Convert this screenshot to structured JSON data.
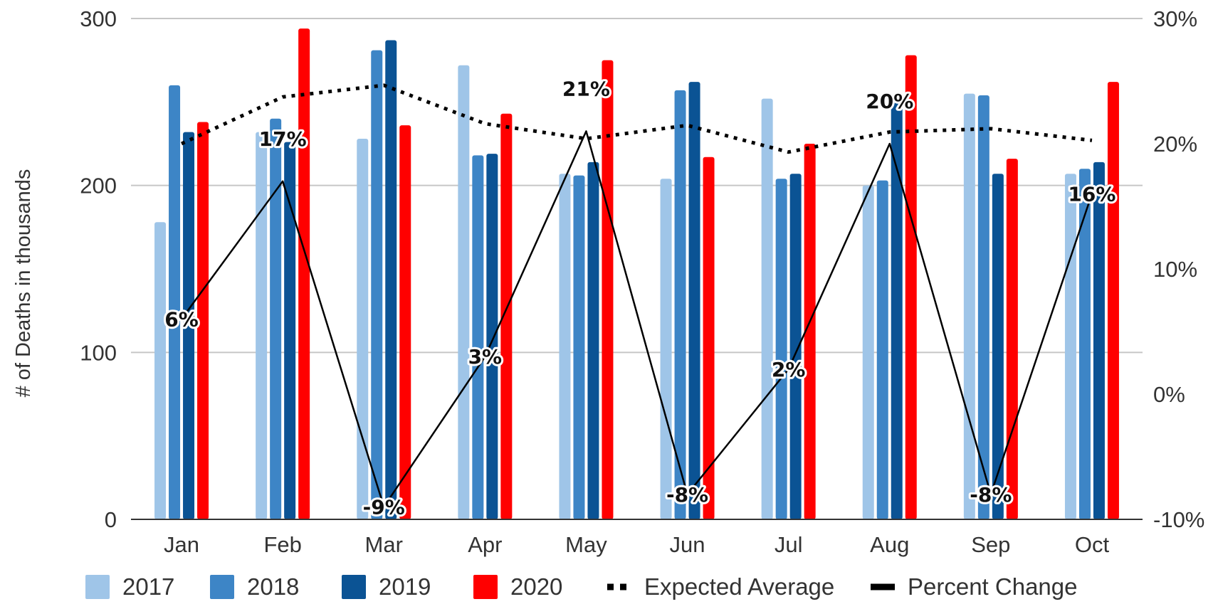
{
  "chart_data": {
    "type": "bar",
    "title": "",
    "xlabel": "",
    "ylabel": "# of Deaths in thousands",
    "categories": [
      "Jan",
      "Feb",
      "Mar",
      "Apr",
      "May",
      "Jun",
      "Jul",
      "Aug",
      "Sep",
      "Oct"
    ],
    "ylim": [
      0,
      300
    ],
    "y_ticks": [
      "0",
      "100",
      "200",
      "300"
    ],
    "y2lim": [
      -10,
      30
    ],
    "y2_ticks": [
      "-10%",
      "0%",
      "10%",
      "20%",
      "30%"
    ],
    "grid": true,
    "legend_position": "bottom",
    "series": [
      {
        "name": "2017",
        "kind": "bar",
        "color": "#9fc5e8",
        "values": [
          178,
          232,
          228,
          272,
          207,
          204,
          252,
          200,
          255,
          207
        ]
      },
      {
        "name": "2018",
        "kind": "bar",
        "color": "#3d85c6",
        "values": [
          260,
          240,
          281,
          218,
          206,
          257,
          204,
          203,
          254,
          210
        ]
      },
      {
        "name": "2019",
        "kind": "bar",
        "color": "#0b5394",
        "values": [
          232,
          226,
          287,
          219,
          214,
          262,
          207,
          250,
          207,
          214
        ]
      },
      {
        "name": "2020",
        "kind": "bar",
        "color": "#ff0000",
        "values": [
          238,
          294,
          236,
          243,
          275,
          217,
          225,
          278,
          216,
          262
        ]
      },
      {
        "name": "Expected Average",
        "kind": "line",
        "style": "dotted",
        "axis": "left",
        "color": "#000000",
        "values": [
          225,
          253,
          260,
          237,
          228,
          236,
          220,
          232,
          234,
          227
        ]
      },
      {
        "name": "Percent Change",
        "kind": "line",
        "style": "solid",
        "axis": "right",
        "color": "#000000",
        "values": [
          6,
          17,
          -9,
          3,
          21,
          -8,
          2,
          20,
          -8,
          16
        ],
        "labels": [
          "6%",
          "17%",
          "-9%",
          "3%",
          "21%",
          "-8%",
          "2%",
          "20%",
          "-8%",
          "16%"
        ]
      }
    ]
  }
}
